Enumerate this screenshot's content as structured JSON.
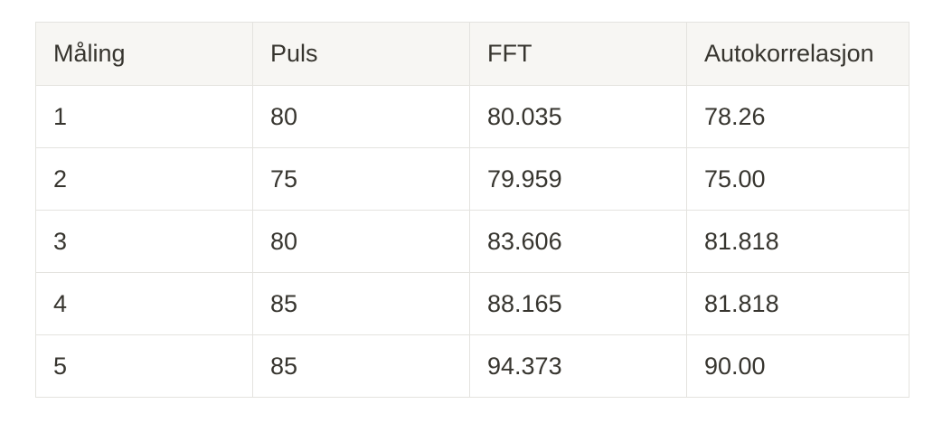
{
  "table": {
    "headers": [
      "Måling",
      "Puls",
      "FFT",
      "Autokorrelasjon"
    ],
    "rows": [
      [
        "1",
        "80",
        "80.035",
        "78.26"
      ],
      [
        "2",
        "75",
        "79.959",
        "75.00"
      ],
      [
        "3",
        "80",
        "83.606",
        "81.818"
      ],
      [
        "4",
        "85",
        "88.165",
        "81.818"
      ],
      [
        "5",
        "85",
        "94.373",
        "90.00"
      ]
    ]
  }
}
